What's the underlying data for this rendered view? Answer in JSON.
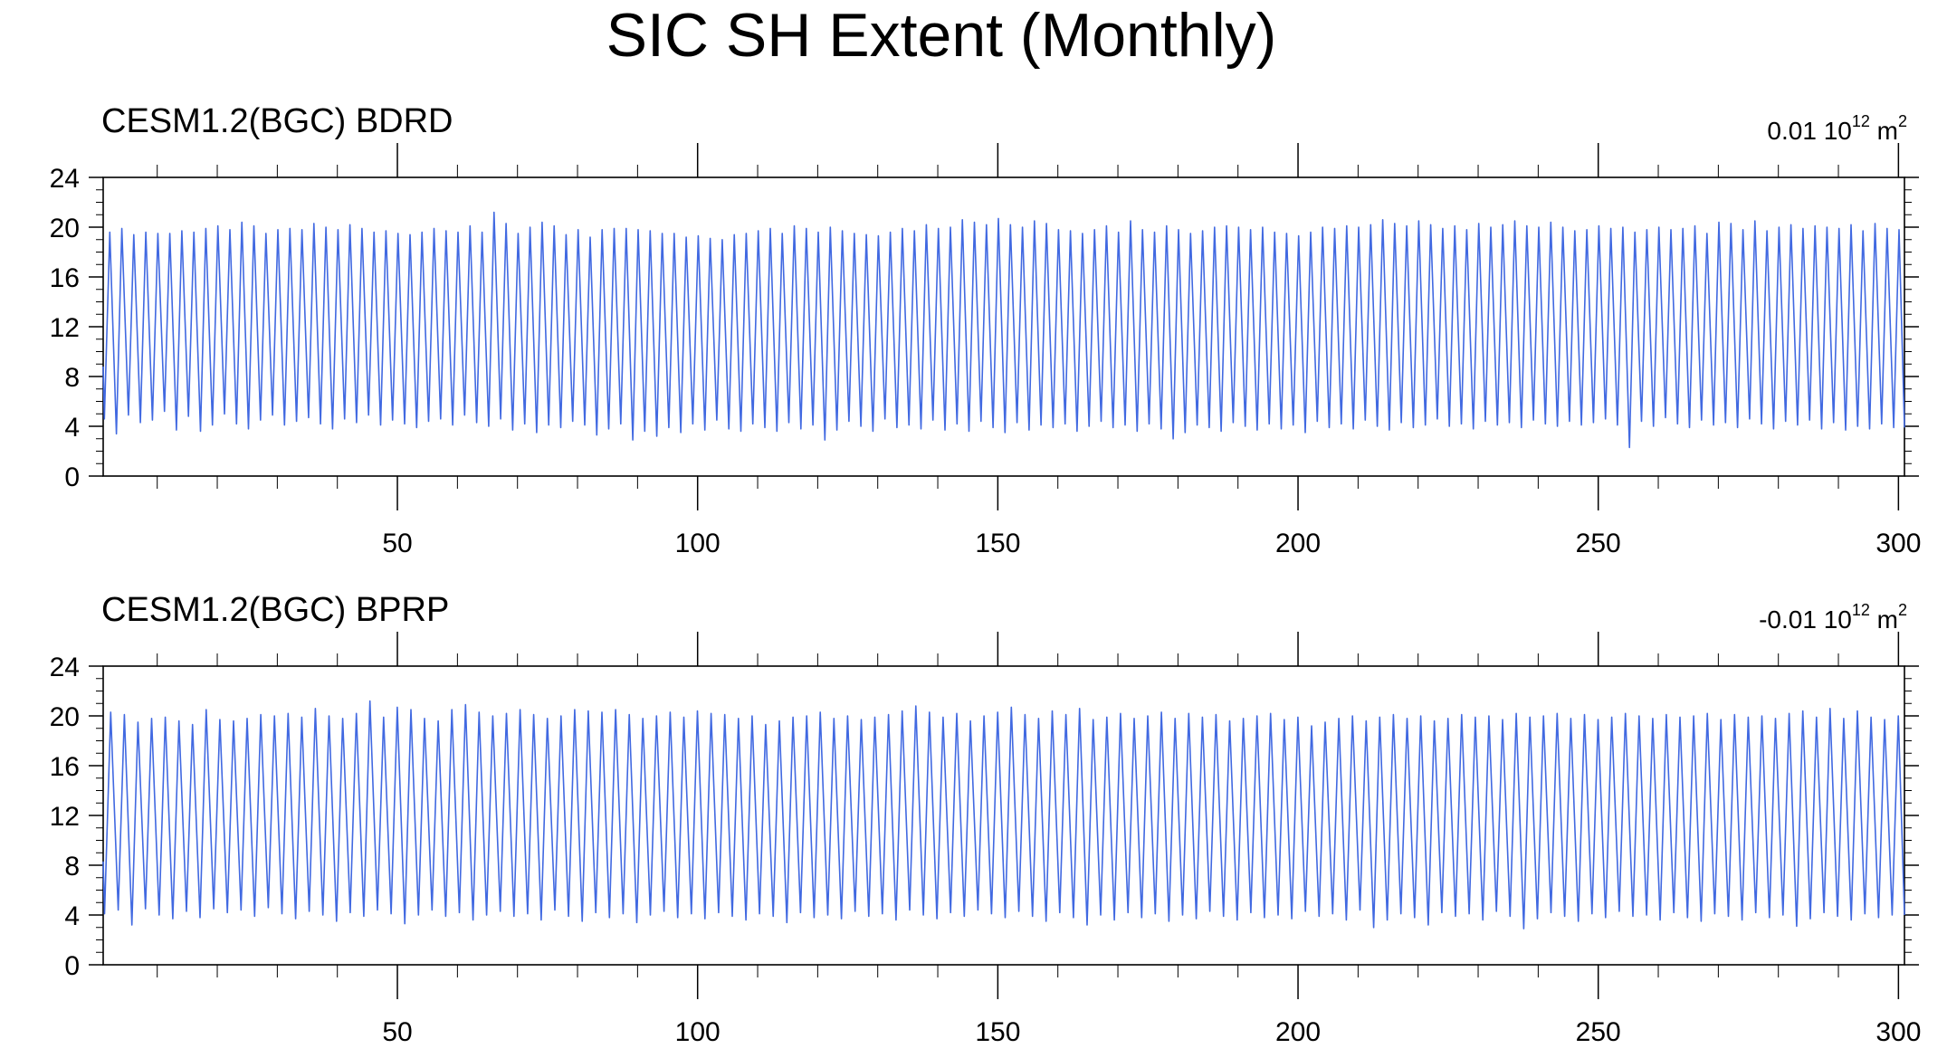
{
  "title": "SIC SH Extent (Monthly)",
  "chart_data": [
    {
      "type": "line",
      "title": "CESM1.2(BGC) BDRD",
      "units_prefix": "0.01 10",
      "units_exp": "12",
      "units_unit": " m",
      "units_unit_exp": "2",
      "xlim": [
        1,
        301
      ],
      "ylim": [
        0,
        24
      ],
      "x_ticks": [
        50,
        100,
        150,
        200,
        250,
        300
      ],
      "y_ticks": [
        0,
        4,
        8,
        12,
        16,
        20,
        24
      ],
      "grid": false,
      "line_color": "#4169e1",
      "series": [
        {
          "peaks": [
            19.6,
            19.9,
            19.4,
            19.6,
            19.5,
            19.5,
            19.7,
            19.6,
            19.9,
            20.1,
            19.8,
            20.4,
            20.1,
            19.5,
            19.8,
            19.9,
            19.8,
            20.3,
            20.0,
            19.8,
            20.2,
            19.9,
            19.6,
            19.7,
            19.5,
            19.4,
            19.6,
            19.9,
            19.7,
            19.6,
            20.1,
            19.6,
            21.2,
            20.3,
            19.5,
            20.0,
            20.4,
            20.1,
            19.4,
            19.8,
            19.2,
            19.8,
            19.9,
            19.9,
            19.8,
            19.7,
            19.5,
            19.5,
            19.2,
            19.3,
            19.1,
            19.0,
            19.4,
            19.5,
            19.7,
            19.9,
            19.5,
            20.1,
            19.9,
            19.6,
            20.0,
            19.7,
            19.5,
            19.4,
            19.3,
            19.6,
            19.9,
            19.7,
            20.2,
            19.9,
            20.0,
            20.6,
            20.4,
            20.2,
            20.7,
            20.2,
            20.0,
            20.5,
            20.3,
            19.8,
            19.7,
            19.5,
            19.8,
            20.1,
            19.6,
            20.5,
            19.8,
            19.6,
            20.1,
            19.8,
            19.5,
            19.7,
            20.0,
            20.1,
            20.0,
            19.8,
            20.0,
            19.6,
            19.5,
            19.3,
            19.6,
            20.0,
            19.9,
            20.1,
            20.0,
            20.2,
            20.6,
            20.3,
            20.1,
            20.5,
            20.2,
            19.9,
            20.1,
            19.8,
            20.3,
            20.0,
            20.2,
            20.5,
            20.1,
            20.0,
            20.4,
            20.0,
            19.7,
            19.8,
            20.1,
            19.9,
            20.0,
            19.6,
            19.8,
            20.0,
            19.8,
            19.9,
            20.1,
            19.5,
            20.4,
            20.3,
            19.8,
            20.5,
            19.7,
            20.0,
            20.2,
            19.9,
            20.1,
            20.0,
            19.9,
            20.2,
            19.7,
            20.3,
            19.9,
            19.8,
            20.4,
            19.6,
            20.1,
            19.8
          ],
          "troughs": [
            4.6,
            3.4,
            4.9,
            4.3,
            4.5,
            5.2,
            3.7,
            4.8,
            3.6,
            4.1,
            5.0,
            4.2,
            3.8,
            4.5,
            4.9,
            4.1,
            4.4,
            4.7,
            4.2,
            3.8,
            4.6,
            4.3,
            4.9,
            4.1,
            4.5,
            4.2,
            3.9,
            4.4,
            4.6,
            4.1,
            4.9,
            4.3,
            4.0,
            4.6,
            3.7,
            4.2,
            3.5,
            4.1,
            3.9,
            4.4,
            4.1,
            3.3,
            3.8,
            4.2,
            2.9,
            3.6,
            3.2,
            3.9,
            3.5,
            4.2,
            3.7,
            4.5,
            3.8,
            3.6,
            4.2,
            3.9,
            3.6,
            4.3,
            3.8,
            4.1,
            2.9,
            3.7,
            4.4,
            4.0,
            3.6,
            4.6,
            3.9,
            4.1,
            3.8,
            4.5,
            3.7,
            4.2,
            3.6,
            4.4,
            3.9,
            3.5,
            4.3,
            3.7,
            4.1,
            3.9,
            4.2,
            3.6,
            4.0,
            4.4,
            3.9,
            4.1,
            3.6,
            4.2,
            3.8,
            3.0,
            3.5,
            4.1,
            3.9,
            3.6,
            4.3,
            4.0,
            3.7,
            4.2,
            3.8,
            4.1,
            3.5,
            4.4,
            3.9,
            4.2,
            3.8,
            4.5,
            4.0,
            3.7,
            4.3,
            3.9,
            4.1,
            4.6,
            4.0,
            4.2,
            3.8,
            4.4,
            4.1,
            4.3,
            3.9,
            4.5,
            4.2,
            4.0,
            4.4,
            4.1,
            4.3,
            4.6,
            4.1,
            2.3,
            4.4,
            4.0,
            4.7,
            4.2,
            3.9,
            4.5,
            4.1,
            4.3,
            3.9,
            4.6,
            4.2,
            3.8,
            4.4,
            4.1,
            4.5,
            3.8,
            4.3,
            3.7,
            4.0,
            3.8,
            4.2,
            3.9
          ]
        }
      ]
    },
    {
      "type": "line",
      "title": "CESM1.2(BGC) BPRP",
      "units_prefix": "-0.01 10",
      "units_exp": "12",
      "units_unit": " m",
      "units_unit_exp": "2",
      "xlim": [
        1,
        301
      ],
      "ylim": [
        0,
        24
      ],
      "x_ticks": [
        50,
        100,
        150,
        200,
        250,
        300
      ],
      "y_ticks": [
        0,
        4,
        8,
        12,
        16,
        20,
        24
      ],
      "grid": false,
      "line_color": "#4169e1",
      "series": [
        {
          "peaks": [
            20.3,
            20.1,
            19.5,
            19.8,
            19.9,
            19.6,
            19.3,
            20.5,
            19.7,
            19.6,
            19.8,
            20.1,
            20.0,
            20.2,
            19.9,
            20.6,
            20.0,
            19.8,
            20.2,
            21.2,
            19.9,
            20.7,
            20.5,
            19.8,
            19.6,
            20.5,
            20.9,
            20.3,
            20.0,
            20.2,
            20.5,
            20.1,
            19.8,
            20.0,
            20.5,
            20.4,
            20.3,
            20.5,
            20.1,
            19.8,
            20.0,
            20.3,
            19.9,
            20.4,
            20.2,
            20.1,
            19.8,
            20.0,
            19.3,
            19.6,
            19.9,
            20.0,
            20.3,
            19.8,
            20.0,
            19.7,
            19.9,
            20.1,
            20.4,
            20.8,
            20.3,
            19.9,
            20.2,
            19.6,
            20.0,
            20.3,
            20.7,
            20.1,
            19.8,
            20.4,
            20.1,
            20.6,
            19.7,
            19.9,
            20.2,
            19.8,
            20.0,
            20.3,
            19.8,
            20.2,
            19.9,
            20.1,
            19.6,
            19.8,
            20.0,
            20.2,
            19.7,
            19.9,
            19.2,
            19.5,
            19.8,
            20.0,
            19.6,
            19.9,
            20.1,
            19.8,
            20.0,
            19.6,
            19.8,
            20.1,
            19.9,
            20.0,
            19.7,
            20.2,
            19.9,
            20.0,
            20.2,
            19.8,
            20.1,
            19.7,
            19.9,
            20.2,
            20.0,
            19.8,
            20.1,
            19.9,
            20.0,
            20.2,
            19.7,
            20.1,
            19.9,
            20.0,
            19.8,
            20.2,
            20.4,
            19.9,
            20.6,
            19.8,
            20.4,
            19.9,
            19.7,
            20.0
          ],
          "troughs": [
            4.1,
            4.4,
            3.2,
            4.5,
            4.0,
            3.7,
            4.3,
            3.8,
            4.5,
            4.2,
            4.4,
            3.9,
            4.6,
            4.1,
            3.7,
            4.3,
            4.0,
            3.5,
            4.2,
            3.9,
            4.4,
            4.1,
            3.3,
            4.0,
            4.4,
            3.9,
            4.2,
            3.6,
            4.0,
            4.3,
            3.9,
            4.1,
            3.6,
            4.4,
            3.9,
            3.5,
            4.2,
            3.8,
            4.1,
            3.4,
            4.0,
            4.3,
            3.8,
            4.1,
            3.7,
            4.2,
            3.9,
            3.6,
            4.1,
            3.9,
            3.4,
            4.2,
            3.8,
            4.0,
            3.7,
            4.3,
            3.9,
            4.1,
            3.6,
            4.4,
            4.0,
            3.7,
            4.2,
            3.9,
            4.4,
            4.1,
            3.8,
            4.3,
            3.9,
            3.5,
            4.2,
            3.8,
            3.2,
            4.0,
            3.6,
            4.2,
            3.8,
            4.1,
            3.5,
            4.0,
            3.7,
            4.3,
            3.9,
            3.6,
            4.2,
            3.8,
            4.0,
            3.7,
            4.3,
            3.9,
            4.1,
            3.6,
            4.4,
            3.0,
            3.6,
            4.1,
            3.8,
            3.2,
            4.2,
            3.9,
            4.1,
            3.6,
            4.3,
            3.9,
            2.9,
            3.7,
            4.2,
            3.9,
            3.5,
            4.1,
            3.8,
            4.3,
            3.9,
            4.0,
            3.6,
            4.2,
            3.8,
            3.5,
            4.1,
            3.9,
            3.6,
            4.2,
            3.8,
            4.0,
            3.1,
            3.7,
            4.2,
            3.9,
            3.6,
            4.1,
            3.8,
            4.0
          ]
        }
      ]
    }
  ]
}
